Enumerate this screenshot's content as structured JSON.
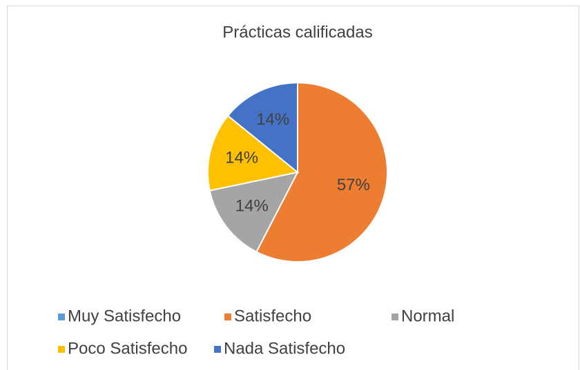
{
  "chart_data": {
    "type": "pie",
    "title": "Prácticas calificadas",
    "categories": [
      "Muy Satisfecho",
      "Satisfecho",
      "Normal",
      "Poco Satisfecho",
      "Nada Satisfecho"
    ],
    "values": [
      0,
      57,
      14,
      14,
      14
    ],
    "value_labels": [
      null,
      "57%",
      "14%",
      "14%",
      "14%"
    ],
    "colors": [
      "#5b9bd5",
      "#ed7d31",
      "#a5a5a5",
      "#ffc000",
      "#4472c4"
    ],
    "legend": "bottom"
  }
}
